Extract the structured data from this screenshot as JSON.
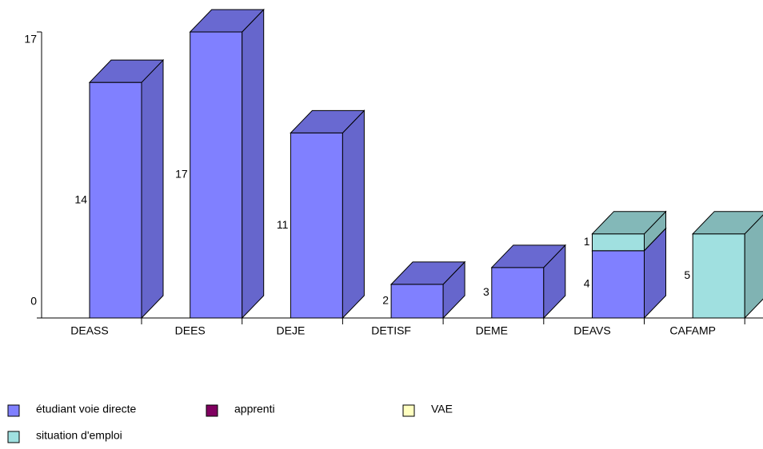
{
  "chart_data": {
    "type": "bar3d_stacked",
    "categories": [
      "DEASS",
      "DEES",
      "DEJE",
      "DETISF",
      "DEME",
      "DEAVS",
      "CAFAMP"
    ],
    "series": [
      {
        "name": "étudiant voie directe",
        "color": "#8080ff",
        "values": [
          14,
          17,
          11,
          2,
          3,
          4,
          0
        ]
      },
      {
        "name": "apprenti",
        "color": "#800060",
        "values": [
          0,
          0,
          0,
          0,
          0,
          0,
          0
        ]
      },
      {
        "name": "VAE",
        "color": "#ffffc0",
        "values": [
          0,
          0,
          0,
          0,
          0,
          0,
          0
        ]
      },
      {
        "name": "situation d'emploi",
        "color": "#a0e0e0",
        "values": [
          0,
          0,
          0,
          0,
          0,
          1,
          5
        ]
      }
    ],
    "ylim": [
      0,
      17
    ],
    "yticks": [
      0,
      17
    ]
  }
}
